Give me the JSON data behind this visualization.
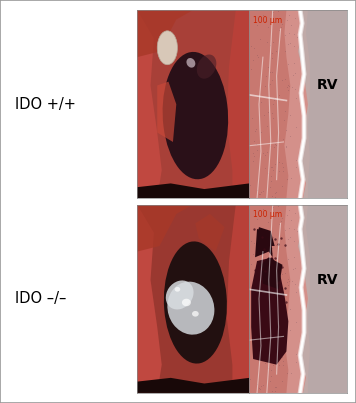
{
  "figure_width": 3.56,
  "figure_height": 4.03,
  "dpi": 100,
  "background_color": "#ffffff",
  "border_color": "#999999",
  "border_linewidth": 1.2,
  "labels": [
    "IDO +/+",
    "IDO –/–"
  ],
  "label_fontsize": 10.5,
  "label_color": "#000000",
  "rv_label": "RV",
  "rv_fontsize": 10,
  "rv_color": "#000000",
  "scale_bar_text": "100 μm",
  "scale_bar_color": "#cc2200",
  "scale_bar_fontsize": 5.5,
  "gross_top_bg": "#a84038",
  "gross_bot_bg": "#9a3830",
  "histo_bg": "#c8aca8",
  "heart_color_top": "#2a1018",
  "heart_color_bot": "#221010",
  "calc_color": "#b0b8c0",
  "calc_dark_color": "#3a0a18"
}
